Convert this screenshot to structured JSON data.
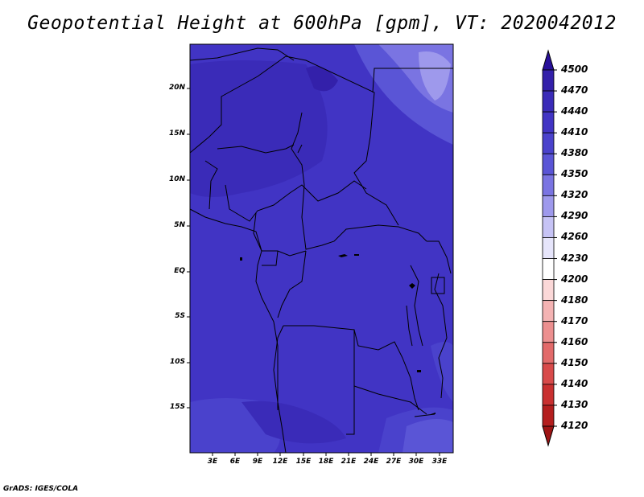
{
  "title": "Geopotential Height at 600hPa [gpm], VT: 2020042012",
  "credit": "GrADS: IGES/COLA",
  "map": {
    "lat_labels": [
      "20N",
      "15N",
      "10N",
      "5N",
      "EQ",
      "5S",
      "10S",
      "15S"
    ],
    "lon_labels": [
      "3E",
      "6E",
      "9E",
      "12E",
      "15E",
      "18E",
      "21E",
      "24E",
      "27E",
      "30E",
      "33E"
    ]
  },
  "colorbar": {
    "levels": [
      "4500",
      "4470",
      "4440",
      "4410",
      "4380",
      "4350",
      "4320",
      "4290",
      "4260",
      "4230",
      "4200",
      "4180",
      "4170",
      "4160",
      "4150",
      "4140",
      "4130",
      "4120"
    ],
    "colors": [
      "#28109a",
      "#3320aa",
      "#3a2bb8",
      "#4134c4",
      "#4a42cc",
      "#5a55d6",
      "#7a74e2",
      "#9e99ec",
      "#c6c3f5",
      "#e6e5fb",
      "#ffffff",
      "#fbd8d8",
      "#f4b3b3",
      "#ec8f8f",
      "#e26a6a",
      "#d84a4a",
      "#c93030",
      "#b41e1e",
      "#9e1414"
    ]
  }
}
